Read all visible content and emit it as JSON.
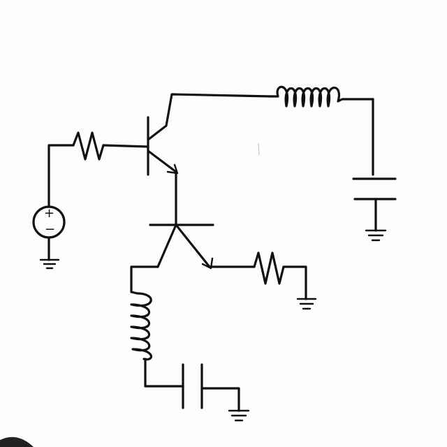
{
  "source": {
    "plus_symbol": "+",
    "minus_symbol": "−"
  },
  "components": {
    "voltage_source": "voltage-source-icon",
    "resistor": "resistor-icon",
    "inductor": "inductor-icon",
    "capacitor": "capacitor-icon",
    "transistor": "bjt-transistor-icon",
    "ground": "ground-icon"
  },
  "colors": {
    "ink": "#111111",
    "paper": "#fdfdfd"
  }
}
